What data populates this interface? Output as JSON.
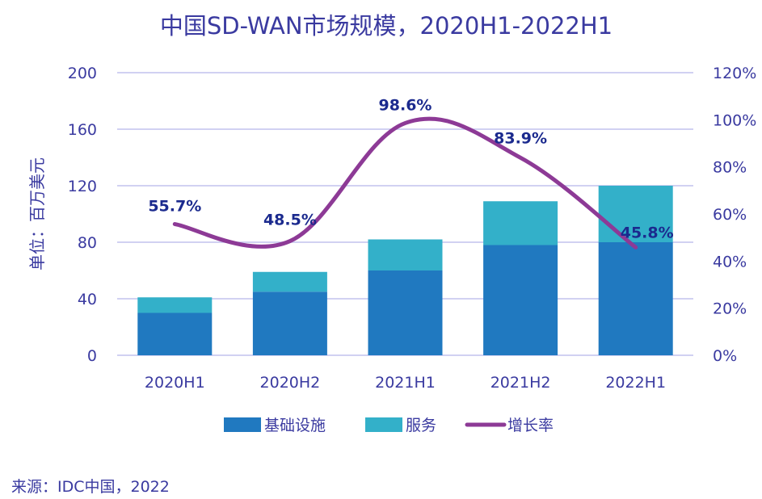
{
  "chart_data": {
    "type": "bar",
    "title": "中国SD-WAN市场规模，2020H1-2022H1",
    "ylabel": "单位：百万美元",
    "categories": [
      "2020H1",
      "2020H2",
      "2021H1",
      "2021H2",
      "2022H1"
    ],
    "series": [
      {
        "name": "基础设施",
        "type": "bar",
        "stack": "total",
        "values": [
          30,
          45,
          60,
          78,
          80
        ]
      },
      {
        "name": "服务",
        "type": "bar",
        "stack": "total",
        "values": [
          11,
          14,
          22,
          31,
          40
        ]
      },
      {
        "name": "增长率",
        "type": "line",
        "axis": "right",
        "values": [
          55.7,
          48.5,
          98.6,
          83.9,
          45.8
        ]
      }
    ],
    "point_labels": [
      "55.7%",
      "48.5%",
      "98.6%",
      "83.9%",
      "45.8%"
    ],
    "ylim": [
      0,
      200
    ],
    "yticks": [
      "0",
      "40",
      "80",
      "120",
      "160",
      "200"
    ],
    "y2lim": [
      0,
      120
    ],
    "y2ticks": [
      "0%",
      "20%",
      "40%",
      "60%",
      "80%",
      "100%",
      "120%"
    ],
    "grid": "horizontal",
    "legend": "bottom-center",
    "colors": {
      "bars_primary": "#2079c0",
      "bars_secondary": "#33b0c9",
      "line": "#8d3a96",
      "text": "#3a3aa0",
      "label": "#1b2a8e",
      "grid": "#c2c2ee"
    },
    "source": "来源：IDC中国，2022"
  }
}
